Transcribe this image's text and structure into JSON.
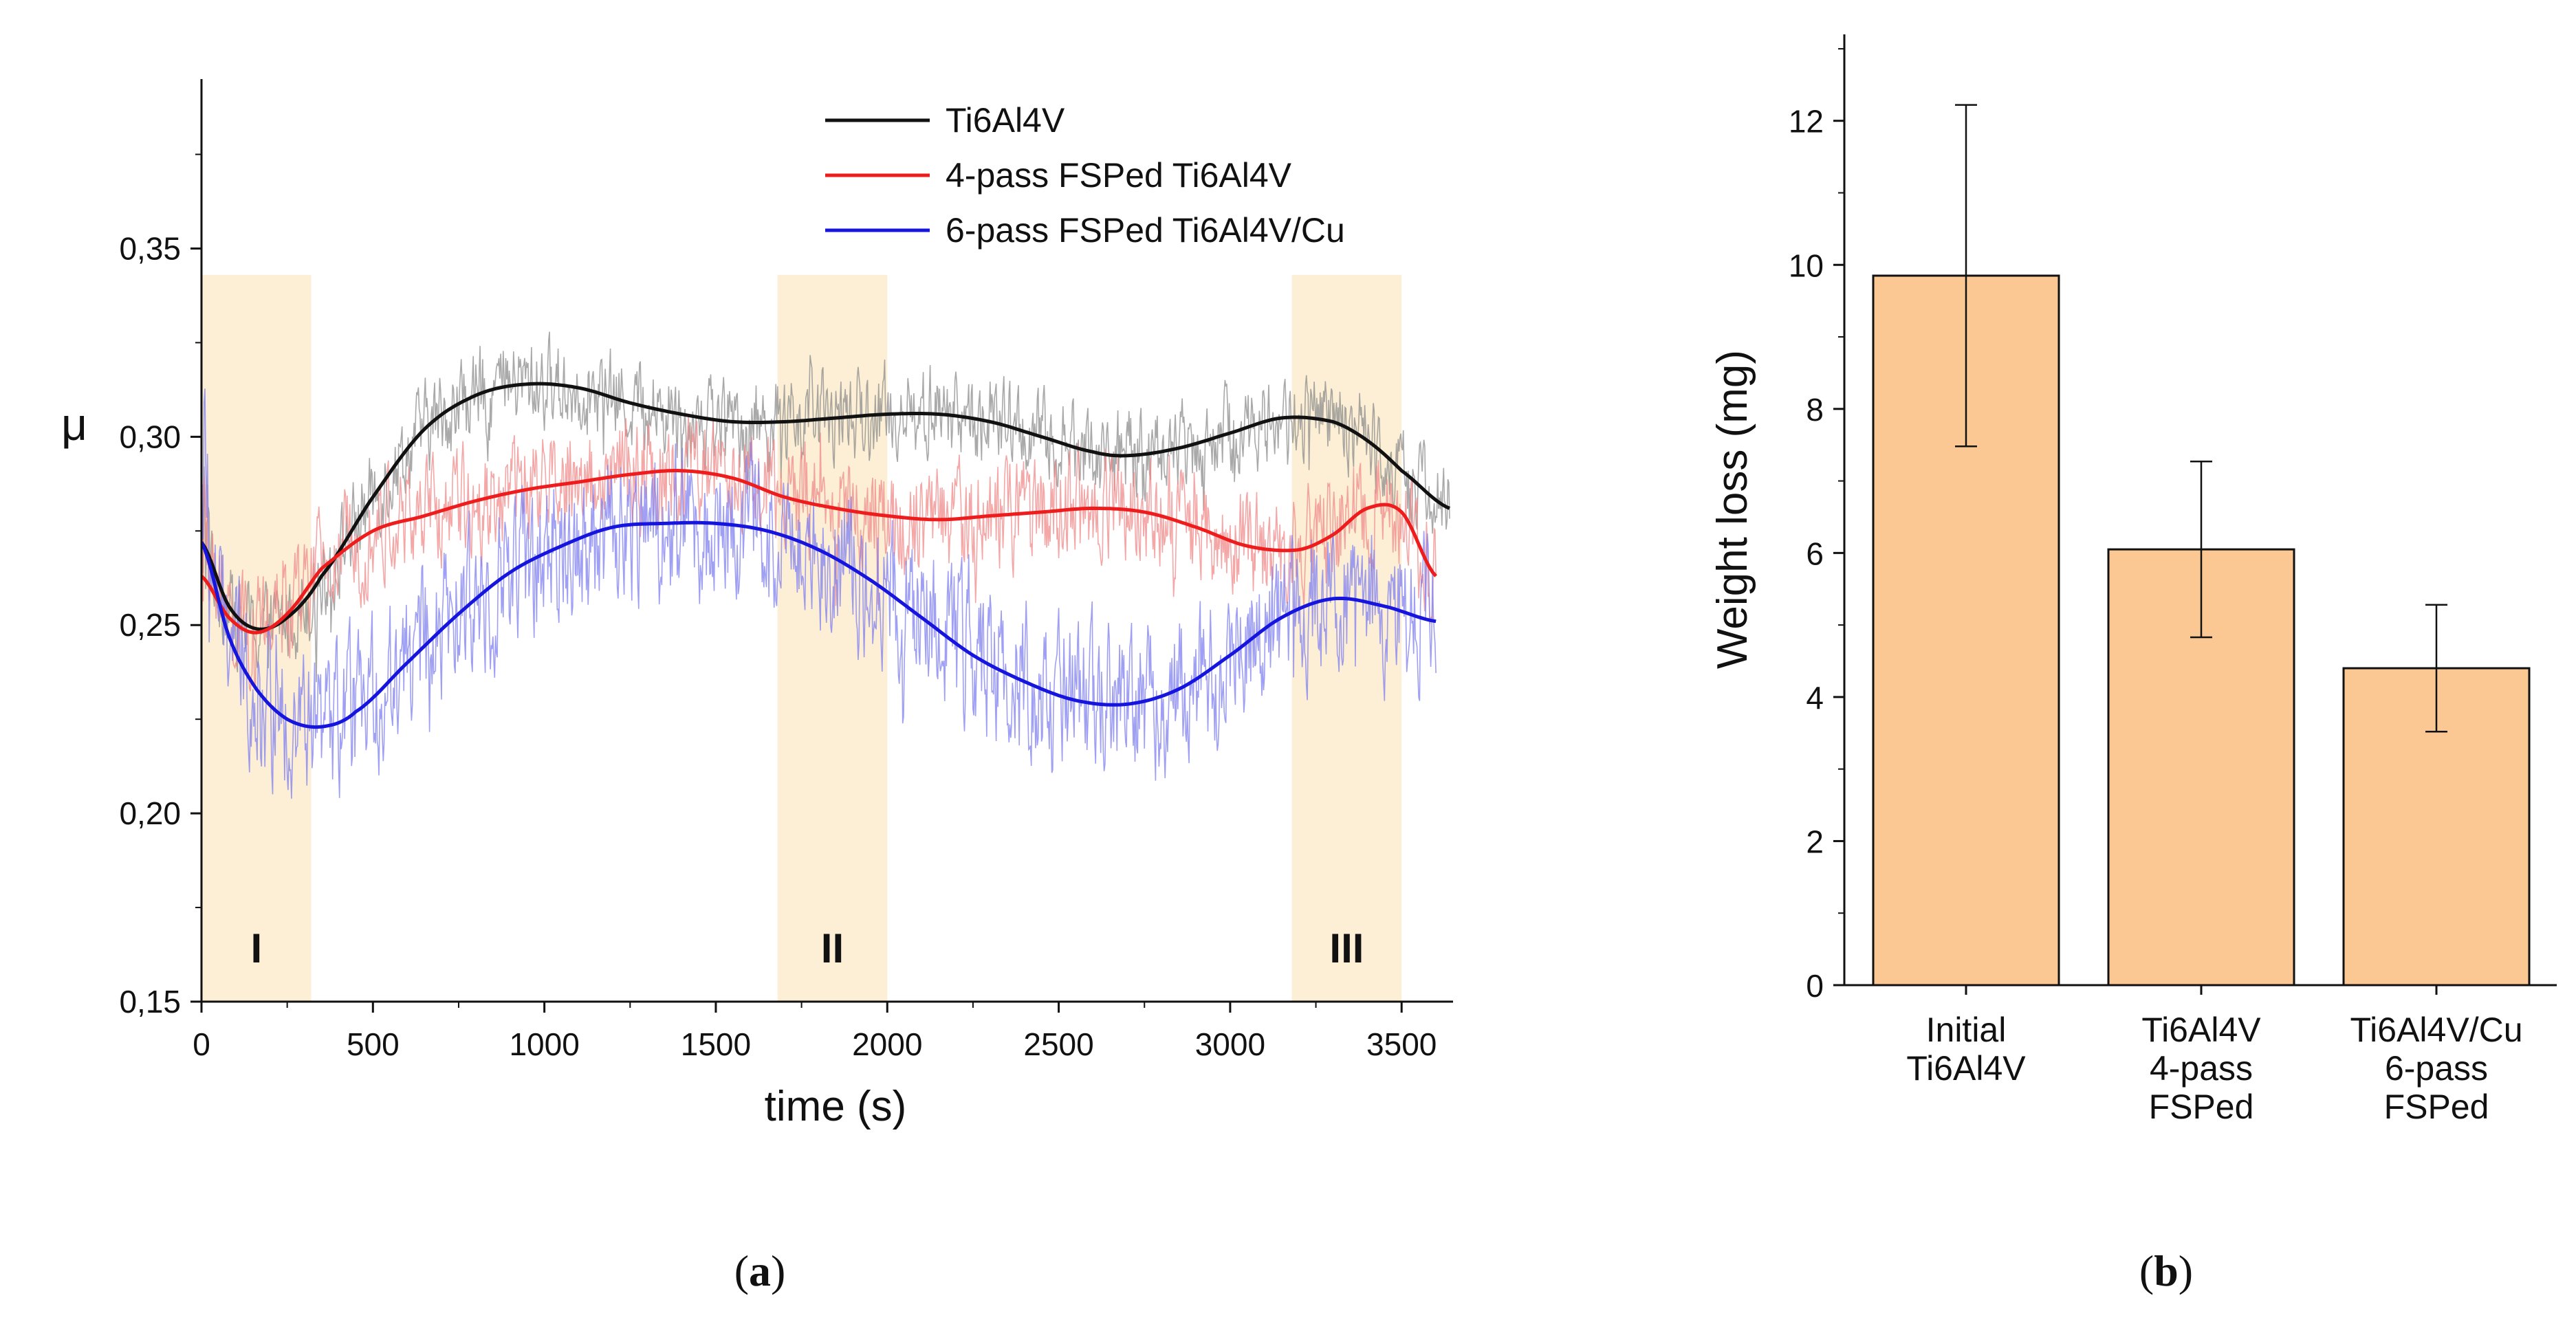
{
  "chart_data": [
    {
      "type": "line",
      "panel_label": "a",
      "xlabel": "time (s)",
      "ylabel": "μ",
      "xlim": [
        0,
        3650
      ],
      "ylim": [
        0.15,
        0.395
      ],
      "xticks": [
        {
          "value": 0,
          "label": "0"
        },
        {
          "value": 500,
          "label": "500"
        },
        {
          "value": 1000,
          "label": "1000"
        },
        {
          "value": 1500,
          "label": "1500"
        },
        {
          "value": 2000,
          "label": "2000"
        },
        {
          "value": 2500,
          "label": "2500"
        },
        {
          "value": 3000,
          "label": "3000"
        },
        {
          "value": 3500,
          "label": "3500"
        }
      ],
      "yticks": [
        {
          "value": 0.15,
          "label": "0,15"
        },
        {
          "value": 0.2,
          "label": "0,20"
        },
        {
          "value": 0.25,
          "label": "0,25"
        },
        {
          "value": 0.3,
          "label": "0,30"
        },
        {
          "value": 0.35,
          "label": "0,35"
        }
      ],
      "regions": [
        {
          "label": "I",
          "x_start": 0,
          "x_end": 320,
          "y_top": 0.343,
          "color": "#fcefd5"
        },
        {
          "label": "II",
          "x_start": 1680,
          "x_end": 2000,
          "y_top": 0.343,
          "color": "#fcefd5"
        },
        {
          "label": "III",
          "x_start": 3180,
          "x_end": 3500,
          "y_top": 0.343,
          "color": "#fcefd5"
        }
      ],
      "legend_position": "top-right",
      "series": [
        {
          "name": "Ti6Al4V",
          "color": "#111111",
          "raw_color": "#8c8c8c",
          "noise_amplitude": 0.018,
          "x_end": 3640,
          "x": [
            0,
            80,
            160,
            250,
            350,
            500,
            650,
            800,
            950,
            1100,
            1250,
            1400,
            1550,
            1700,
            1850,
            2000,
            2150,
            2300,
            2450,
            2600,
            2700,
            2850,
            3000,
            3150,
            3300,
            3400,
            3500,
            3640
          ],
          "y": [
            0.272,
            0.255,
            0.249,
            0.252,
            0.263,
            0.284,
            0.302,
            0.311,
            0.314,
            0.313,
            0.309,
            0.306,
            0.304,
            0.304,
            0.305,
            0.306,
            0.306,
            0.304,
            0.3,
            0.296,
            0.295,
            0.297,
            0.301,
            0.305,
            0.304,
            0.299,
            0.291,
            0.281
          ]
        },
        {
          "name": "4-pass FSPed Ti6Al4V",
          "color": "#ee1d1d",
          "raw_color": "#f08a8a",
          "noise_amplitude": 0.022,
          "x_end": 3600,
          "x": [
            0,
            80,
            160,
            250,
            350,
            500,
            650,
            800,
            950,
            1100,
            1250,
            1400,
            1550,
            1700,
            1850,
            2000,
            2150,
            2300,
            2450,
            2600,
            2750,
            2900,
            3050,
            3200,
            3300,
            3400,
            3500,
            3600
          ],
          "y": [
            0.263,
            0.252,
            0.248,
            0.253,
            0.265,
            0.275,
            0.279,
            0.283,
            0.286,
            0.288,
            0.29,
            0.291,
            0.289,
            0.284,
            0.281,
            0.279,
            0.278,
            0.279,
            0.28,
            0.281,
            0.28,
            0.276,
            0.271,
            0.27,
            0.274,
            0.281,
            0.28,
            0.263
          ]
        },
        {
          "name": "6-pass FSPed Ti6Al4V/Cu",
          "color": "#1515dd",
          "raw_color": "#7f7ff0",
          "noise_amplitude": 0.03,
          "x_end": 3600,
          "x": [
            0,
            80,
            160,
            250,
            350,
            450,
            600,
            750,
            900,
            1050,
            1200,
            1350,
            1500,
            1650,
            1800,
            1950,
            2100,
            2250,
            2400,
            2550,
            2700,
            2850,
            3000,
            3150,
            3300,
            3450,
            3600
          ],
          "y": [
            0.272,
            0.247,
            0.233,
            0.225,
            0.223,
            0.227,
            0.24,
            0.253,
            0.264,
            0.271,
            0.276,
            0.277,
            0.277,
            0.275,
            0.27,
            0.262,
            0.252,
            0.242,
            0.235,
            0.23,
            0.229,
            0.233,
            0.242,
            0.252,
            0.257,
            0.255,
            0.251
          ]
        }
      ]
    },
    {
      "type": "bar",
      "panel_label": "b",
      "xlabel": "",
      "ylabel": "Weight loss (mg)",
      "ylim": [
        0,
        13.2
      ],
      "yticks": [
        0,
        2,
        4,
        6,
        8,
        10,
        12
      ],
      "bar_color": "#fbc894",
      "categories": [
        [
          "Initial",
          "Ti6Al4V"
        ],
        [
          "Ti6Al4V",
          "4-pass",
          "FSPed"
        ],
        [
          "Ti6Al4V/Cu",
          "6-pass",
          "FSPed"
        ]
      ],
      "values": [
        9.85,
        6.05,
        4.4
      ],
      "error_low": [
        7.48,
        4.83,
        3.52
      ],
      "error_high": [
        12.22,
        7.27,
        5.28
      ]
    }
  ]
}
